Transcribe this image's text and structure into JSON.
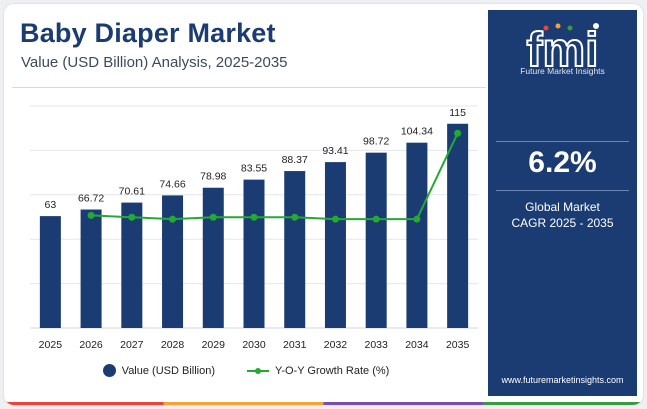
{
  "header": {
    "title": "Baby Diaper Market",
    "subtitle": "Value (USD Billion) Analysis, 2025-2035"
  },
  "legend": {
    "bar_label": "Value (USD Billion)",
    "line_label": "Y-O-Y Growth Rate (%)"
  },
  "panel": {
    "logo_text": "fmi",
    "logo_subtitle": "Future Market Insights",
    "cagr_value": "6.2%",
    "cagr_label_line1": "Global Market",
    "cagr_label_line2": "CAGR 2025 - 2035",
    "website": "www.futuremarketinsights.com"
  },
  "colors": {
    "bar": "#1b3c73",
    "line": "#22aa33",
    "panel": "#1b3c73"
  },
  "chart_data": {
    "type": "bar",
    "title": "Baby Diaper Market",
    "subtitle": "Value (USD Billion) Analysis, 2025-2035",
    "categories": [
      "2025",
      "2026",
      "2027",
      "2028",
      "2029",
      "2030",
      "2031",
      "2032",
      "2033",
      "2034",
      "2035"
    ],
    "series": [
      {
        "name": "Value (USD Billion)",
        "type": "bar",
        "values": [
          63,
          66.72,
          70.61,
          74.66,
          78.98,
          83.55,
          88.37,
          93.41,
          98.72,
          104.34,
          115
        ],
        "labels": [
          "63",
          "66.72",
          "70.61",
          "74.66",
          "78.98",
          "83.55",
          "88.37",
          "93.41",
          "98.72",
          "104.34",
          "115"
        ]
      },
      {
        "name": "Y-O-Y Growth Rate (%)",
        "type": "line",
        "x": [
          "2026",
          "2027",
          "2028",
          "2029",
          "2030",
          "2031",
          "2032",
          "2033",
          "2034",
          "2035"
        ],
        "values": [
          5.9,
          5.8,
          5.7,
          5.8,
          5.8,
          5.8,
          5.7,
          5.7,
          5.7,
          10.2
        ]
      }
    ],
    "ylim": [
      0,
      125
    ],
    "grid": true,
    "legend": "bottom"
  }
}
